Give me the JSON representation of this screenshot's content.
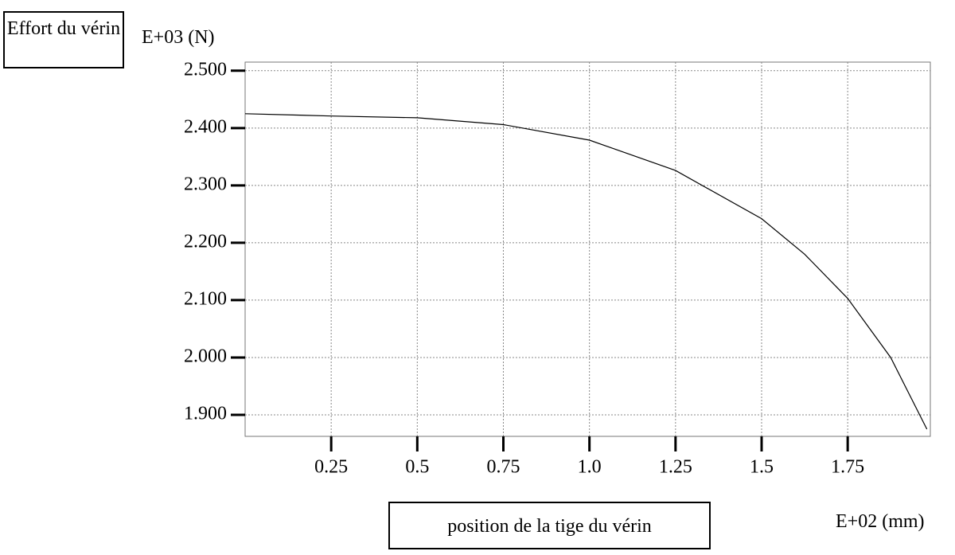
{
  "chart_data": {
    "type": "line",
    "y_label": "Effort du vérin",
    "y_unit": "E+03 (N)",
    "x_label": "position de la tige du vérin",
    "x_unit": "E+02 (mm)",
    "x": [
      0,
      0.25,
      0.5,
      0.75,
      1.0,
      1.25,
      1.5,
      1.625,
      1.75,
      1.875,
      1.98
    ],
    "values": [
      2.425,
      2.421,
      2.418,
      2.406,
      2.379,
      2.326,
      2.242,
      2.18,
      2.103,
      2.0,
      1.875
    ],
    "color": "#000000",
    "xlim": [
      0,
      1.99
    ],
    "ylim": [
      1.8625,
      2.515
    ],
    "xticks": [
      0.25,
      0.5,
      0.75,
      {
        "value": 1.0,
        "label": "1.0"
      },
      1.25,
      1.5,
      1.75
    ],
    "yticks": [
      {
        "value": 2.5,
        "label": "2.500"
      },
      {
        "value": 2.4,
        "label": "2.400"
      },
      {
        "value": 2.3,
        "label": "2.300"
      },
      {
        "value": 2.2,
        "label": "2.200"
      },
      {
        "value": 2.1,
        "label": "2.100"
      },
      {
        "value": 2.0,
        "label": "2.000"
      },
      {
        "value": 1.9,
        "label": "1.900"
      }
    ],
    "grid": true
  }
}
